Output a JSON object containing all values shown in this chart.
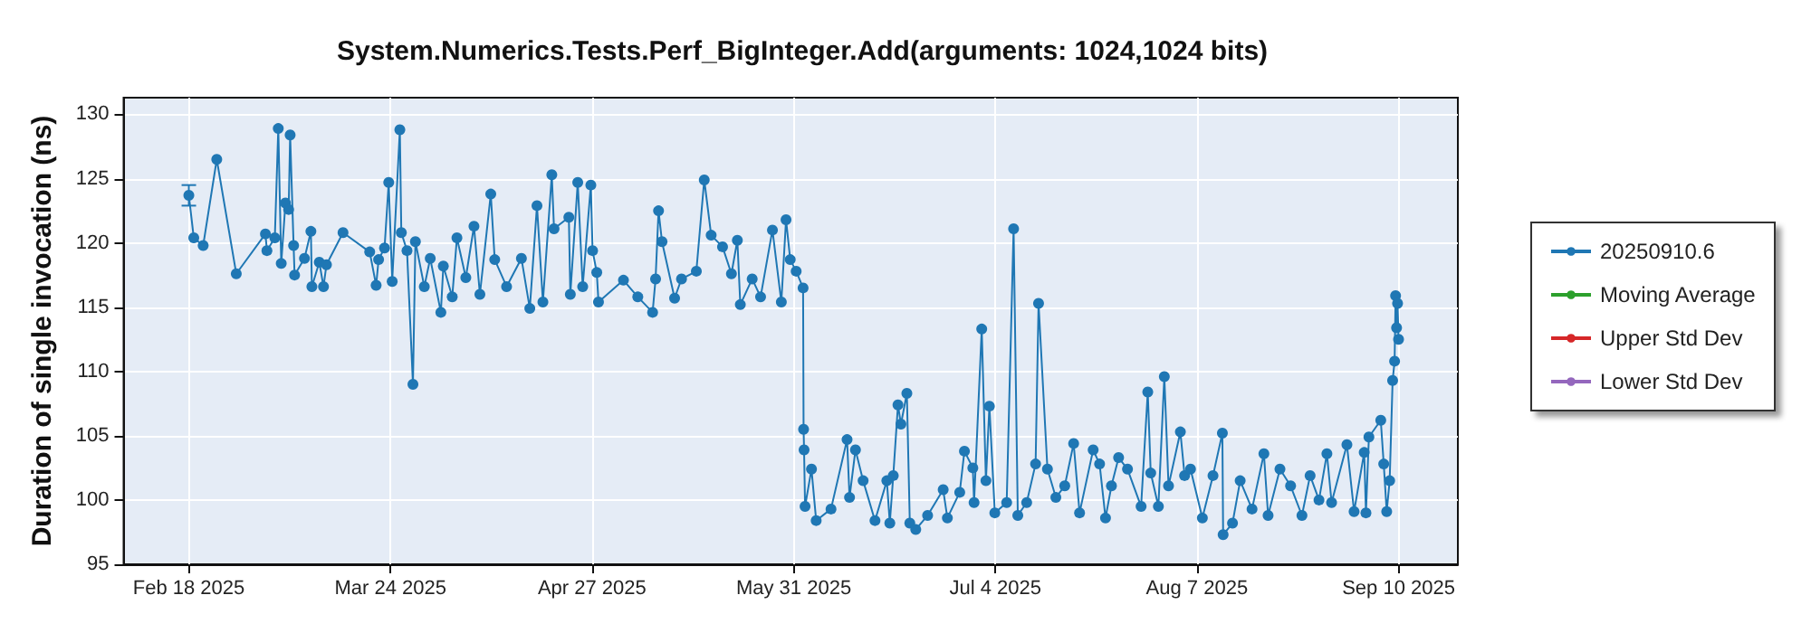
{
  "chart_data": {
    "type": "line",
    "title": "System.Numerics.Tests.Perf_BigInteger.Add(arguments: 1024,1024 bits)",
    "ylabel": "Duration of single invocation (ns)",
    "x": [
      "2025-02-18",
      "2025-02-18T20:00",
      "2025-02-20T10:00",
      "2025-02-22T17:00",
      "2025-02-26",
      "2025-03-02T22:00",
      "2025-03-03T04:00",
      "2025-03-04T12:00",
      "2025-03-05T02:00",
      "2025-03-05T14:00",
      "2025-03-06T07:00",
      "2025-03-06T20:00",
      "2025-03-07T02:00",
      "2025-03-07T16:00",
      "2025-03-07T20:00",
      "2025-03-09T12:00",
      "2025-03-10T14:00",
      "2025-03-10T18:00",
      "2025-03-12",
      "2025-03-12T17:00",
      "2025-03-13T05:00",
      "2025-03-16",
      "2025-03-20T12:00",
      "2025-03-21T14:00",
      "2025-03-22",
      "2025-03-23",
      "2025-03-23T17:00",
      "2025-03-24T07:00",
      "2025-03-25T14:00",
      "2025-03-25T20:00",
      "2025-03-26T19:00",
      "2025-03-27T19:00",
      "2025-03-28T05:00",
      "2025-03-29T17:00",
      "2025-03-30T17:00",
      "2025-04-01T12:00",
      "2025-04-01T22:00",
      "2025-04-03T10:00",
      "2025-04-04T05:00",
      "2025-04-05T17:00",
      "2025-04-07T02:00",
      "2025-04-08T02:00",
      "2025-04-09T22:00",
      "2025-04-10T14:00",
      "2025-04-12T14:00",
      "2025-04-15T02:00",
      "2025-04-16T12:00",
      "2025-04-17T17:00",
      "2025-04-18T17:00",
      "2025-04-20T05:00",
      "2025-04-20T14:00",
      "2025-04-23T02:00",
      "2025-04-23T08:00",
      "2025-04-24T14:00",
      "2025-04-25T10:00",
      "2025-04-26T19:00",
      "2025-04-27T02:00",
      "2025-04-27T19:00",
      "2025-04-28T02:00",
      "2025-05-02T07:00",
      "2025-05-04T17:00",
      "2025-05-07T05:00",
      "2025-05-07T17:00",
      "2025-05-08T05:00",
      "2025-05-08T19:00",
      "2025-05-10T22:00",
      "2025-05-12T02:00",
      "2025-05-14T14:00",
      "2025-05-15T22:00",
      "2025-05-17T02:00",
      "2025-05-19",
      "2025-05-20T12:00",
      "2025-05-21T12:00",
      "2025-05-22",
      "2025-05-24",
      "2025-05-25T10:00",
      "2025-05-27T10:00",
      "2025-05-28T22:00",
      "2025-05-29T17:00",
      "2025-05-30T10:00",
      "2025-05-31T10:00",
      "2025-06-01T14:00",
      "2025-06-01T16:00",
      "2025-06-01T18:00",
      "2025-06-01T22:00",
      "2025-06-03",
      "2025-06-03T19:00",
      "2025-06-06T07:00",
      "2025-06-09",
      "2025-06-09T10:00",
      "2025-06-10T10:00",
      "2025-06-11T17:00",
      "2025-06-13T17:00",
      "2025-06-15T17:00",
      "2025-06-16T05:00",
      "2025-06-16T19:00",
      "2025-06-17T14:00",
      "2025-06-18T02:00",
      "2025-06-19T02:00",
      "2025-06-19T14:00",
      "2025-06-20T14:00",
      "2025-06-22T14:00",
      "2025-06-25T05:00",
      "2025-06-25T22:00",
      "2025-06-28",
      "2025-06-28T19:00",
      "2025-06-30T05:00",
      "2025-06-30T10:00",
      "2025-07-01T17:00",
      "2025-07-02T10:00",
      "2025-07-03",
      "2025-07-03T22:00",
      "2025-07-05T22:00",
      "2025-07-07T02:00",
      "2025-07-07T19:00",
      "2025-07-09T07:00",
      "2025-07-10T19:00",
      "2025-07-11T07:00",
      "2025-07-12T19:00",
      "2025-07-14T05:00",
      "2025-07-15T17:00",
      "2025-07-17T05:00",
      "2025-07-18T05:00",
      "2025-07-20T12:00",
      "2025-07-21T14:00",
      "2025-07-22T14:00",
      "2025-07-23T14:00",
      "2025-07-24T19:00",
      "2025-07-26T07:00",
      "2025-07-28T14:00",
      "2025-07-29T17:00",
      "2025-07-30T05:00",
      "2025-07-31T12:00",
      "2025-08-01T12:00",
      "2025-08-02T05:00",
      "2025-08-04T05:00",
      "2025-08-04T22:00",
      "2025-08-05T22:00",
      "2025-08-07T22:00",
      "2025-08-09T17:00",
      "2025-08-11T07:00",
      "2025-08-11T10:00",
      "2025-08-13",
      "2025-08-14T07:00",
      "2025-08-16T07:00",
      "2025-08-18T07:00",
      "2025-08-19",
      "2025-08-21",
      "2025-08-22T19:00",
      "2025-08-24T17:00",
      "2025-08-26T02:00",
      "2025-08-27T14:00",
      "2025-08-28T22:00",
      "2025-08-29T17:00",
      "2025-09-01T07:00",
      "2025-09-02T12:00",
      "2025-09-04T05:00",
      "2025-09-04T12:00",
      "2025-09-05",
      "2025-09-07",
      "2025-09-07T12:00",
      "2025-09-08",
      "2025-09-08T12:00",
      "2025-09-09",
      "2025-09-09T08:00",
      "2025-09-09T12:00",
      "2025-09-09T16:00",
      "2025-09-09T20:00",
      "2025-09-10"
    ],
    "series": [
      {
        "name": "20250910.6",
        "color": "#1f77b4",
        "values": [
          123.7,
          120.4,
          119.8,
          126.5,
          117.6,
          120.7,
          119.4,
          120.4,
          128.9,
          118.4,
          123.1,
          122.6,
          128.4,
          119.8,
          117.5,
          118.8,
          120.9,
          116.6,
          118.5,
          116.6,
          118.3,
          120.8,
          119.3,
          116.7,
          118.7,
          119.6,
          124.7,
          117.0,
          128.8,
          120.8,
          119.4,
          109.0,
          120.1,
          116.6,
          118.8,
          114.6,
          118.2,
          115.8,
          120.4,
          117.3,
          121.3,
          116.0,
          123.8,
          118.7,
          116.6,
          118.8,
          114.9,
          122.9,
          115.4,
          125.3,
          121.1,
          122.0,
          116.0,
          124.7,
          116.6,
          124.5,
          119.4,
          117.7,
          115.4,
          117.1,
          115.8,
          114.6,
          117.2,
          122.5,
          120.1,
          115.7,
          117.2,
          117.8,
          124.9,
          120.6,
          119.7,
          117.6,
          120.2,
          115.2,
          117.2,
          115.8,
          121.0,
          115.4,
          121.8,
          118.7,
          117.8,
          116.5,
          105.5,
          103.9,
          99.5,
          102.4,
          98.4,
          99.3,
          104.7,
          100.2,
          103.9,
          101.5,
          98.4,
          101.5,
          98.2,
          101.9,
          107.4,
          105.9,
          108.3,
          98.2,
          97.7,
          98.8,
          100.8,
          98.6,
          100.6,
          103.8,
          102.5,
          99.8,
          113.3,
          101.5,
          107.3,
          99.0,
          99.8,
          121.1,
          98.8,
          99.8,
          102.8,
          115.3,
          102.4,
          100.2,
          101.1,
          104.4,
          99.0,
          103.9,
          102.8,
          98.6,
          101.1,
          103.3,
          102.4,
          99.5,
          108.4,
          102.1,
          99.5,
          109.6,
          101.1,
          105.3,
          101.9,
          102.4,
          98.6,
          101.9,
          105.2,
          97.3,
          98.2,
          101.5,
          99.3,
          103.6,
          98.8,
          102.4,
          101.1,
          98.8,
          101.9,
          100.0,
          103.6,
          99.8,
          104.3,
          99.1,
          103.7,
          99.0,
          104.9,
          106.2,
          102.8,
          99.1,
          101.5,
          109.3,
          110.8,
          115.9,
          113.4,
          115.3,
          112.5
        ],
        "errors": [
          0.8,
          null,
          null,
          null,
          null,
          null,
          null,
          null,
          null,
          null,
          null,
          null,
          null,
          null,
          null,
          null,
          null,
          null,
          null,
          null,
          null,
          null,
          null,
          null,
          null,
          null,
          null,
          null,
          null,
          null,
          null,
          null,
          null,
          null,
          null,
          null,
          null,
          null,
          null,
          null,
          null,
          null,
          null,
          null,
          null,
          null,
          null,
          null,
          null,
          null,
          null,
          null,
          null,
          null,
          null,
          null,
          null,
          null,
          null,
          null,
          null,
          null,
          null,
          null,
          null,
          null,
          null,
          null,
          null,
          null,
          null,
          null,
          null,
          null,
          null,
          null,
          null,
          null,
          null,
          null,
          null,
          null,
          null,
          null,
          null,
          null,
          null,
          null,
          null,
          null,
          null,
          null,
          null,
          null,
          null,
          null,
          null,
          null,
          null,
          null,
          null,
          null,
          null,
          null,
          null,
          null,
          null,
          null,
          null,
          null,
          null,
          null,
          null,
          null,
          null,
          null,
          null,
          null,
          null,
          null,
          null,
          null,
          null,
          null,
          null,
          null,
          null,
          null,
          null,
          null,
          null,
          null,
          null,
          null,
          null,
          null,
          null,
          null,
          null,
          null,
          null,
          null,
          null,
          null,
          null,
          null,
          null,
          null,
          null,
          null,
          null,
          null,
          null,
          null,
          null,
          null,
          null,
          null,
          null,
          null,
          null,
          null,
          null,
          null,
          null,
          null,
          null,
          null,
          null
        ]
      },
      {
        "name": "Moving Average",
        "color": "#2ca02c",
        "values": [
          null,
          null,
          null,
          null,
          null,
          null,
          null,
          null,
          null,
          null,
          null,
          null,
          null,
          null,
          null,
          null,
          null,
          null,
          null,
          null,
          null,
          null,
          null,
          null,
          null,
          null,
          null,
          null,
          null,
          null,
          null,
          null,
          null,
          null,
          null,
          null,
          null,
          null,
          null,
          null,
          null,
          null,
          null,
          null,
          null,
          null,
          null,
          null,
          null,
          null,
          null,
          null,
          null,
          null,
          null,
          null,
          null,
          null,
          null,
          null,
          null,
          null,
          null,
          null,
          null,
          null,
          null,
          null,
          null,
          null,
          null,
          null,
          null,
          null,
          null,
          null,
          null,
          null,
          null,
          null,
          null,
          null,
          null,
          null,
          null,
          null,
          null,
          null,
          null,
          null,
          null,
          null,
          null,
          null,
          null,
          null,
          null,
          null,
          null,
          null,
          null,
          null,
          null,
          null,
          null,
          null,
          null,
          null,
          null,
          null,
          null,
          null,
          null,
          null,
          null,
          null,
          null,
          null,
          null,
          null,
          null,
          null,
          null,
          null,
          null,
          null,
          null,
          null,
          null,
          null,
          null,
          null,
          null,
          null,
          null,
          null,
          null,
          null,
          null,
          null,
          null,
          null,
          null,
          null,
          null,
          null,
          null,
          null,
          null,
          null,
          null,
          null,
          null,
          null,
          null,
          null,
          null,
          null,
          null,
          null,
          null,
          null,
          null,
          null,
          null,
          null,
          null,
          null,
          null
        ]
      },
      {
        "name": "Upper Std Dev",
        "color": "#d62728",
        "values": [
          null,
          null,
          null,
          null,
          null,
          null,
          null,
          null,
          null,
          null,
          null,
          null,
          null,
          null,
          null,
          null,
          null,
          null,
          null,
          null,
          null,
          null,
          null,
          null,
          null,
          null,
          null,
          null,
          null,
          null,
          null,
          null,
          null,
          null,
          null,
          null,
          null,
          null,
          null,
          null,
          null,
          null,
          null,
          null,
          null,
          null,
          null,
          null,
          null,
          null,
          null,
          null,
          null,
          null,
          null,
          null,
          null,
          null,
          null,
          null,
          null,
          null,
          null,
          null,
          null,
          null,
          null,
          null,
          null,
          null,
          null,
          null,
          null,
          null,
          null,
          null,
          null,
          null,
          null,
          null,
          null,
          null,
          null,
          null,
          null,
          null,
          null,
          null,
          null,
          null,
          null,
          null,
          null,
          null,
          null,
          null,
          null,
          null,
          null,
          null,
          null,
          null,
          null,
          null,
          null,
          null,
          null,
          null,
          null,
          null,
          null,
          null,
          null,
          null,
          null,
          null,
          null,
          null,
          null,
          null,
          null,
          null,
          null,
          null,
          null,
          null,
          null,
          null,
          null,
          null,
          null,
          null,
          null,
          null,
          null,
          null,
          null,
          null,
          null,
          null,
          null,
          null,
          null,
          null,
          null,
          null,
          null,
          null,
          null,
          null,
          null,
          null,
          null,
          null,
          null,
          null,
          null,
          null,
          null,
          null,
          null,
          null,
          null,
          null,
          null,
          null,
          null,
          null,
          null
        ]
      },
      {
        "name": "Lower Std Dev",
        "color": "#9467bd",
        "values": [
          null,
          null,
          null,
          null,
          null,
          null,
          null,
          null,
          null,
          null,
          null,
          null,
          null,
          null,
          null,
          null,
          null,
          null,
          null,
          null,
          null,
          null,
          null,
          null,
          null,
          null,
          null,
          null,
          null,
          null,
          null,
          null,
          null,
          null,
          null,
          null,
          null,
          null,
          null,
          null,
          null,
          null,
          null,
          null,
          null,
          null,
          null,
          null,
          null,
          null,
          null,
          null,
          null,
          null,
          null,
          null,
          null,
          null,
          null,
          null,
          null,
          null,
          null,
          null,
          null,
          null,
          null,
          null,
          null,
          null,
          null,
          null,
          null,
          null,
          null,
          null,
          null,
          null,
          null,
          null,
          null,
          null,
          null,
          null,
          null,
          null,
          null,
          null,
          null,
          null,
          null,
          null,
          null,
          null,
          null,
          null,
          null,
          null,
          null,
          null,
          null,
          null,
          null,
          null,
          null,
          null,
          null,
          null,
          null,
          null,
          null,
          null,
          null,
          null,
          null,
          null,
          null,
          null,
          null,
          null,
          null,
          null,
          null,
          null,
          null,
          null,
          null,
          null,
          null,
          null,
          null,
          null,
          null,
          null,
          null,
          null,
          null,
          null,
          null,
          null,
          null,
          null,
          null,
          null,
          null,
          null,
          null,
          null,
          null,
          null,
          null,
          null,
          null,
          null,
          null,
          null,
          null,
          null,
          null,
          null,
          null,
          null,
          null,
          null,
          null,
          null,
          null,
          null,
          null
        ]
      }
    ],
    "xlim": [
      "2025-02-07",
      "2025-09-20"
    ],
    "xticks": [
      {
        "value": "2025-02-18",
        "label": "Feb 18 2025"
      },
      {
        "value": "2025-03-24",
        "label": "Mar 24 2025"
      },
      {
        "value": "2025-04-27",
        "label": "Apr 27 2025"
      },
      {
        "value": "2025-05-31",
        "label": "May 31 2025"
      },
      {
        "value": "2025-07-04",
        "label": "Jul 4 2025"
      },
      {
        "value": "2025-08-07",
        "label": "Aug 7 2025"
      },
      {
        "value": "2025-09-10",
        "label": "Sep 10 2025"
      }
    ],
    "ylim": [
      95,
      131.3
    ],
    "yticks": [
      95,
      100,
      105,
      110,
      115,
      120,
      125,
      130
    ],
    "grid": true,
    "legend": "right",
    "marker": "circle",
    "line_style": "solid"
  }
}
